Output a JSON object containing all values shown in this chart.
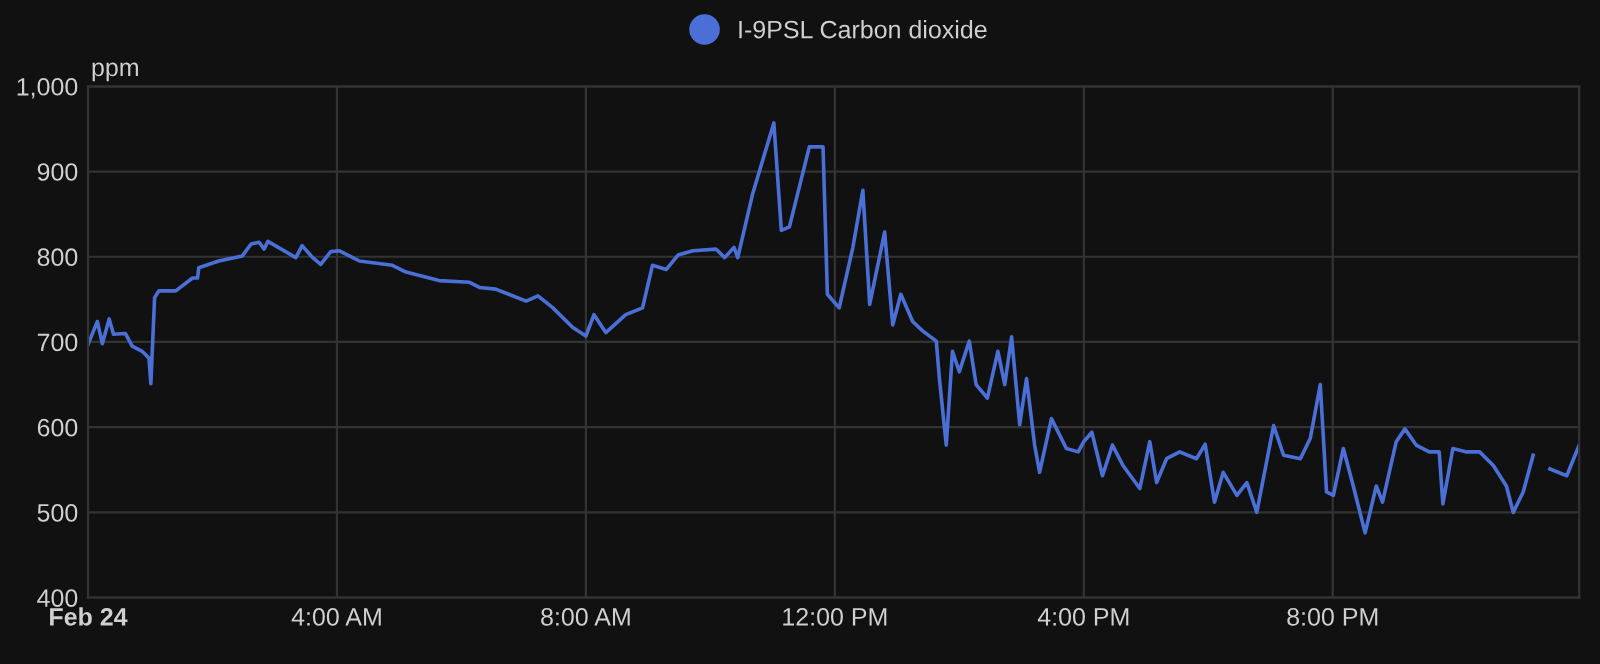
{
  "chart_data": {
    "type": "line",
    "ylabel": "ppm",
    "x": [
      0,
      0.15,
      0.23,
      0.34,
      0.41,
      0.6,
      0.71,
      0.87,
      0.98,
      1.01,
      1.07,
      1.14,
      1.41,
      1.68,
      1.76,
      1.78,
      2.1,
      2.48,
      2.62,
      2.75,
      2.83,
      2.89,
      3.34,
      3.44,
      3.61,
      3.74,
      3.9,
      4.04,
      4.36,
      4.89,
      5.11,
      5.64,
      6.13,
      6.29,
      6.55,
      7.04,
      7.23,
      7.47,
      7.79,
      8.0,
      8.13,
      8.32,
      8.64,
      8.91,
      9.07,
      9.29,
      9.48,
      9.72,
      10.09,
      10.23,
      10.38,
      10.44,
      10.68,
      11.02,
      11.14,
      11.27,
      11.59,
      11.81,
      11.88,
      12.07,
      12.29,
      12.45,
      12.56,
      12.8,
      12.93,
      13.06,
      13.25,
      13.41,
      13.63,
      13.68,
      13.79,
      13.89,
      14.0,
      14.16,
      14.27,
      14.45,
      14.62,
      14.73,
      14.84,
      14.97,
      15.08,
      15.21,
      15.29,
      15.48,
      15.72,
      15.91,
      16.0,
      16.13,
      16.3,
      16.46,
      16.63,
      16.9,
      17.06,
      17.17,
      17.33,
      17.54,
      17.81,
      17.95,
      18.1,
      18.24,
      18.46,
      18.62,
      18.78,
      19.05,
      19.21,
      19.48,
      19.64,
      19.8,
      19.9,
      20.01,
      20.17,
      20.33,
      20.52,
      20.7,
      20.8,
      21.02,
      21.16,
      21.34,
      21.55,
      21.71,
      21.77,
      21.93,
      22.15,
      22.36,
      22.58,
      22.79,
      22.9,
      23.06,
      23.22,
      23.35,
      23.49,
      23.76,
      23.96
    ],
    "series": [
      {
        "name": "I-9PSL Carbon dioxide",
        "color": "#4a6fd6",
        "values": [
          697,
          724,
          698,
          727,
          709,
          710,
          695,
          689,
          681,
          651,
          752,
          760,
          760,
          775,
          775,
          787,
          795,
          801,
          815,
          817,
          809,
          818,
          799,
          813,
          799,
          791,
          806,
          807,
          795,
          790,
          782,
          772,
          770,
          764,
          762,
          748,
          754,
          740,
          717,
          707,
          732,
          711,
          732,
          740,
          790,
          785,
          802,
          807,
          809,
          799,
          811,
          799,
          874,
          957,
          831,
          835,
          929,
          929,
          756,
          740,
          811,
          878,
          744,
          829,
          720,
          756,
          724,
          713,
          701,
          657,
          579,
          689,
          665,
          701,
          650,
          634,
          689,
          650,
          706,
          603,
          657,
          579,
          547,
          610,
          575,
          571,
          583,
          594,
          543,
          579,
          555,
          528,
          583,
          535,
          563,
          571,
          563,
          580,
          512,
          547,
          520,
          535,
          500,
          602,
          567,
          563,
          587,
          650,
          524,
          520,
          575,
          531,
          476,
          531,
          512,
          583,
          598,
          579,
          571,
          571,
          510,
          575,
          571,
          571,
          555,
          531,
          500,
          524,
          567,
          null,
          551,
          543,
          579
        ]
      }
    ],
    "xlim": [
      0,
      23.96
    ],
    "xticks": [
      {
        "value": 0,
        "label": "Feb 24"
      },
      {
        "value": 4,
        "label": "4:00 AM"
      },
      {
        "value": 8,
        "label": "8:00 AM"
      },
      {
        "value": 12,
        "label": "12:00 PM"
      },
      {
        "value": 16,
        "label": "4:00 PM"
      },
      {
        "value": 20,
        "label": "8:00 PM"
      }
    ],
    "ylim": [
      400,
      1000
    ],
    "yticks": [
      400,
      500,
      600,
      700,
      800,
      900,
      {
        "value": 1000,
        "label": "1,000"
      }
    ],
    "grid": true,
    "legend": "top",
    "marker": "none",
    "line_style": "solid"
  }
}
